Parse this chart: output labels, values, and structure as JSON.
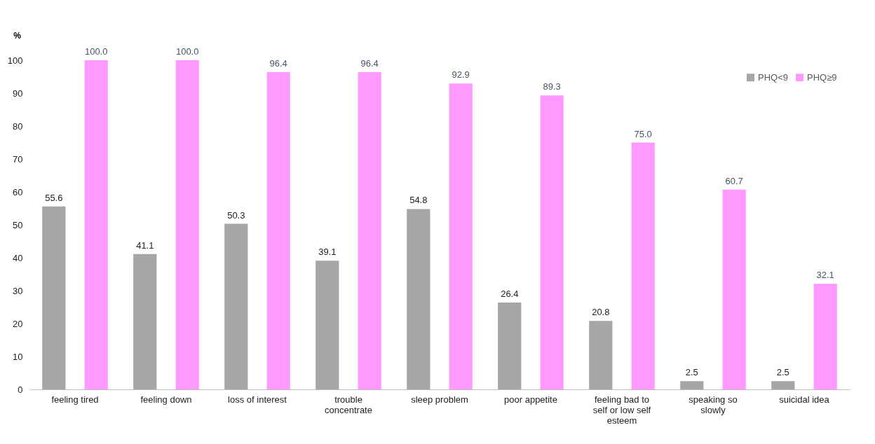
{
  "chart_data": {
    "type": "bar",
    "ylabel": "%",
    "categories": [
      "feeling tired",
      "feeling down",
      "loss of interest",
      "trouble concentrate",
      "sleep problem",
      "poor appetite",
      "feeling bad to self or low self esteem",
      "speaking so slowly",
      "suicidal idea"
    ],
    "series": [
      {
        "name": "PHQ<9",
        "color": "#a6a6a6",
        "values": [
          55.6,
          41.1,
          50.3,
          39.1,
          54.8,
          26.4,
          20.8,
          2.5,
          2.5
        ],
        "value_labels": [
          "55.6",
          "41.1",
          "50.3",
          "39.1",
          "54.8",
          "26.4",
          "20.8",
          "2.5",
          "2.5"
        ]
      },
      {
        "name": "PHQ≥9",
        "color": "#ff99ff",
        "values": [
          100,
          100,
          96.4,
          96.4,
          92.9,
          89.3,
          75,
          60.7,
          32.1
        ],
        "value_labels": [
          "100.0",
          "100.0",
          "96.4",
          "96.4",
          "92.9",
          "89.3",
          "75.0",
          "60.7",
          "32.1"
        ]
      }
    ],
    "ylim": [
      0,
      100
    ],
    "yticks": [
      0,
      10,
      20,
      30,
      40,
      50,
      60,
      70,
      80,
      90,
      100
    ],
    "grid": false,
    "legend": "top right"
  }
}
